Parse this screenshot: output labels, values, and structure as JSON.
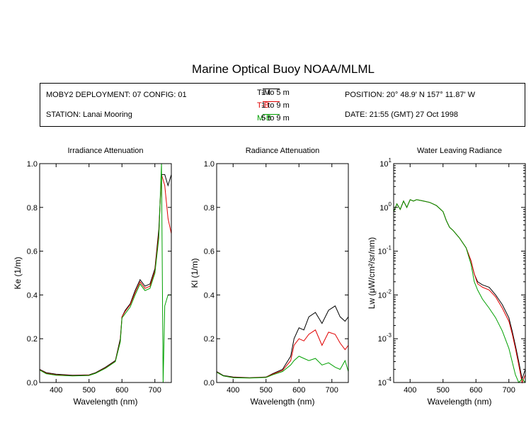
{
  "title": "Marine Optical Buoy NOAA/MLML",
  "info": {
    "deployment": "MOBY2 DEPLOYMENT: 07 CONFIG: 01",
    "station": "STATION: Lanai Mooring",
    "position": "POSITION: 20° 48.9' N   157° 11.87' W",
    "date": "DATE: 21:55 (GMT) 27 Oct 1998",
    "pairs": [
      {
        "code": "T-M",
        "range": "1 to 5  m",
        "color": "#000000"
      },
      {
        "code": "T-B",
        "range": "1 to 9  m",
        "color": "#e00000"
      },
      {
        "code": "M-B",
        "range": "5 to 9  m",
        "color": "#00a000"
      }
    ]
  },
  "chart_data": [
    {
      "type": "line",
      "title": "Irradiance Attenuation",
      "xlabel": "Wavelength (nm)",
      "ylabel": "Ke  (1/m)",
      "xlim": [
        350,
        750
      ],
      "ylim": [
        0,
        1.0
      ],
      "xticks": [
        400,
        500,
        600,
        700
      ],
      "yticks": [
        "0.0",
        "0.2",
        "0.4",
        "0.6",
        "0.8",
        "1.0"
      ],
      "series": [
        {
          "color": "#000000",
          "points": [
            [
              350,
              0.06
            ],
            [
              370,
              0.045
            ],
            [
              400,
              0.038
            ],
            [
              450,
              0.033
            ],
            [
              500,
              0.035
            ],
            [
              520,
              0.045
            ],
            [
              550,
              0.07
            ],
            [
              580,
              0.1
            ],
            [
              595,
              0.2
            ],
            [
              600,
              0.3
            ],
            [
              610,
              0.33
            ],
            [
              625,
              0.36
            ],
            [
              640,
              0.42
            ],
            [
              655,
              0.47
            ],
            [
              670,
              0.44
            ],
            [
              685,
              0.45
            ],
            [
              700,
              0.52
            ],
            [
              712,
              0.7
            ],
            [
              720,
              0.95
            ],
            [
              730,
              0.95
            ],
            [
              740,
              0.9
            ],
            [
              750,
              0.95
            ]
          ]
        },
        {
          "color": "#e00000",
          "points": [
            [
              350,
              0.058
            ],
            [
              370,
              0.042
            ],
            [
              400,
              0.035
            ],
            [
              450,
              0.031
            ],
            [
              500,
              0.033
            ],
            [
              520,
              0.043
            ],
            [
              550,
              0.067
            ],
            [
              580,
              0.097
            ],
            [
              595,
              0.19
            ],
            [
              600,
              0.3
            ],
            [
              610,
              0.325
            ],
            [
              625,
              0.355
            ],
            [
              640,
              0.41
            ],
            [
              655,
              0.46
            ],
            [
              670,
              0.43
            ],
            [
              685,
              0.44
            ],
            [
              700,
              0.51
            ],
            [
              712,
              0.68
            ],
            [
              720,
              0.95
            ],
            [
              730,
              0.9
            ],
            [
              740,
              0.75
            ],
            [
              750,
              0.68
            ]
          ]
        },
        {
          "color": "#00a000",
          "points": [
            [
              350,
              0.057
            ],
            [
              370,
              0.04
            ],
            [
              400,
              0.033
            ],
            [
              450,
              0.03
            ],
            [
              500,
              0.032
            ],
            [
              520,
              0.042
            ],
            [
              550,
              0.065
            ],
            [
              580,
              0.095
            ],
            [
              595,
              0.185
            ],
            [
              600,
              0.295
            ],
            [
              610,
              0.315
            ],
            [
              625,
              0.345
            ],
            [
              640,
              0.4
            ],
            [
              655,
              0.45
            ],
            [
              670,
              0.42
            ],
            [
              685,
              0.43
            ],
            [
              700,
              0.5
            ],
            [
              712,
              0.66
            ],
            [
              720,
              1.0
            ],
            [
              725,
              0.0
            ],
            [
              730,
              0.35
            ],
            [
              740,
              0.4
            ],
            [
              750,
              0.4
            ]
          ]
        }
      ]
    },
    {
      "type": "line",
      "title": "Radiance Attenuation",
      "xlabel": "Wavelength (nm)",
      "ylabel": "Kl  (1/m)",
      "xlim": [
        350,
        750
      ],
      "ylim": [
        0,
        1.0
      ],
      "xticks": [
        400,
        500,
        600,
        700
      ],
      "yticks": [
        "0.0",
        "0.2",
        "0.4",
        "0.6",
        "0.8",
        "1.0"
      ],
      "series": [
        {
          "color": "#000000",
          "points": [
            [
              350,
              0.05
            ],
            [
              370,
              0.032
            ],
            [
              400,
              0.025
            ],
            [
              450,
              0.022
            ],
            [
              500,
              0.025
            ],
            [
              520,
              0.04
            ],
            [
              550,
              0.06
            ],
            [
              575,
              0.12
            ],
            [
              585,
              0.2
            ],
            [
              600,
              0.25
            ],
            [
              615,
              0.24
            ],
            [
              630,
              0.3
            ],
            [
              650,
              0.32
            ],
            [
              670,
              0.27
            ],
            [
              690,
              0.33
            ],
            [
              710,
              0.35
            ],
            [
              725,
              0.3
            ],
            [
              740,
              0.28
            ],
            [
              750,
              0.3
            ]
          ]
        },
        {
          "color": "#e00000",
          "points": [
            [
              350,
              0.048
            ],
            [
              370,
              0.03
            ],
            [
              400,
              0.023
            ],
            [
              450,
              0.021
            ],
            [
              500,
              0.024
            ],
            [
              520,
              0.038
            ],
            [
              550,
              0.055
            ],
            [
              575,
              0.1
            ],
            [
              585,
              0.17
            ],
            [
              600,
              0.2
            ],
            [
              615,
              0.19
            ],
            [
              630,
              0.22
            ],
            [
              650,
              0.24
            ],
            [
              670,
              0.17
            ],
            [
              690,
              0.23
            ],
            [
              710,
              0.22
            ],
            [
              725,
              0.18
            ],
            [
              740,
              0.15
            ],
            [
              750,
              0.17
            ]
          ]
        },
        {
          "color": "#00a000",
          "points": [
            [
              350,
              0.047
            ],
            [
              370,
              0.03
            ],
            [
              400,
              0.022
            ],
            [
              450,
              0.02
            ],
            [
              500,
              0.023
            ],
            [
              520,
              0.035
            ],
            [
              550,
              0.05
            ],
            [
              575,
              0.08
            ],
            [
              585,
              0.1
            ],
            [
              600,
              0.12
            ],
            [
              615,
              0.11
            ],
            [
              630,
              0.1
            ],
            [
              650,
              0.11
            ],
            [
              670,
              0.08
            ],
            [
              690,
              0.09
            ],
            [
              710,
              0.07
            ],
            [
              725,
              0.06
            ],
            [
              740,
              0.1
            ],
            [
              750,
              0.05
            ]
          ]
        }
      ]
    },
    {
      "type": "line",
      "title": "Water Leaving Radiance",
      "xlabel": "Wavelength (nm)",
      "ylabel": "Lw  (μW/cm²/sr/nm)",
      "scale": "log",
      "xlim": [
        350,
        750
      ],
      "ylim": [
        0.0001,
        10
      ],
      "xticks": [
        400,
        500,
        600,
        700
      ],
      "yticks": [
        {
          "value": 10,
          "base": "10",
          "exp": "1"
        },
        {
          "value": 1,
          "base": "10",
          "exp": "0"
        },
        {
          "value": 0.1,
          "base": "10",
          "exp": "-1"
        },
        {
          "value": 0.01,
          "base": "10",
          "exp": "-2"
        },
        {
          "value": 0.001,
          "base": "10",
          "exp": "-3"
        },
        {
          "value": 0.0001,
          "base": "10",
          "exp": "-4"
        }
      ],
      "series": [
        {
          "color": "#000000",
          "points": [
            [
              350,
              0.8
            ],
            [
              360,
              1.2
            ],
            [
              370,
              0.9
            ],
            [
              380,
              1.4
            ],
            [
              390,
              1.0
            ],
            [
              400,
              1.5
            ],
            [
              410,
              1.4
            ],
            [
              420,
              1.5
            ],
            [
              440,
              1.4
            ],
            [
              460,
              1.3
            ],
            [
              480,
              1.1
            ],
            [
              500,
              0.8
            ],
            [
              510,
              0.5
            ],
            [
              520,
              0.35
            ],
            [
              530,
              0.3
            ],
            [
              550,
              0.2
            ],
            [
              570,
              0.12
            ],
            [
              585,
              0.06
            ],
            [
              595,
              0.03
            ],
            [
              605,
              0.02
            ],
            [
              620,
              0.017
            ],
            [
              640,
              0.015
            ],
            [
              660,
              0.01
            ],
            [
              680,
              0.006
            ],
            [
              700,
              0.003
            ],
            [
              710,
              0.0015
            ],
            [
              720,
              0.0007
            ],
            [
              730,
              0.0003
            ],
            [
              740,
              0.00012
            ],
            [
              750,
              0.0002
            ]
          ]
        },
        {
          "color": "#e00000",
          "points": [
            [
              350,
              0.8
            ],
            [
              360,
              1.2
            ],
            [
              370,
              0.9
            ],
            [
              380,
              1.4
            ],
            [
              390,
              1.0
            ],
            [
              400,
              1.5
            ],
            [
              410,
              1.4
            ],
            [
              420,
              1.5
            ],
            [
              440,
              1.4
            ],
            [
              460,
              1.3
            ],
            [
              480,
              1.1
            ],
            [
              500,
              0.8
            ],
            [
              510,
              0.5
            ],
            [
              520,
              0.35
            ],
            [
              530,
              0.3
            ],
            [
              550,
              0.2
            ],
            [
              570,
              0.12
            ],
            [
              585,
              0.06
            ],
            [
              595,
              0.03
            ],
            [
              605,
              0.018
            ],
            [
              620,
              0.015
            ],
            [
              640,
              0.013
            ],
            [
              660,
              0.009
            ],
            [
              680,
              0.005
            ],
            [
              700,
              0.0025
            ],
            [
              710,
              0.0013
            ],
            [
              720,
              0.0006
            ],
            [
              730,
              0.00025
            ],
            [
              740,
              0.0001
            ],
            [
              750,
              0.00015
            ]
          ]
        },
        {
          "color": "#00a000",
          "points": [
            [
              350,
              0.8
            ],
            [
              360,
              1.2
            ],
            [
              370,
              0.9
            ],
            [
              380,
              1.4
            ],
            [
              390,
              1.0
            ],
            [
              400,
              1.5
            ],
            [
              410,
              1.4
            ],
            [
              420,
              1.5
            ],
            [
              440,
              1.4
            ],
            [
              460,
              1.3
            ],
            [
              480,
              1.1
            ],
            [
              500,
              0.8
            ],
            [
              510,
              0.5
            ],
            [
              520,
              0.35
            ],
            [
              530,
              0.3
            ],
            [
              550,
              0.2
            ],
            [
              570,
              0.12
            ],
            [
              585,
              0.05
            ],
            [
              595,
              0.02
            ],
            [
              605,
              0.013
            ],
            [
              620,
              0.008
            ],
            [
              640,
              0.005
            ],
            [
              660,
              0.003
            ],
            [
              680,
              0.0015
            ],
            [
              700,
              0.0006
            ],
            [
              710,
              0.0003
            ],
            [
              720,
              0.00015
            ],
            [
              730,
              0.0001
            ],
            [
              740,
              0.00012
            ],
            [
              750,
              0.0001
            ]
          ]
        }
      ]
    }
  ]
}
